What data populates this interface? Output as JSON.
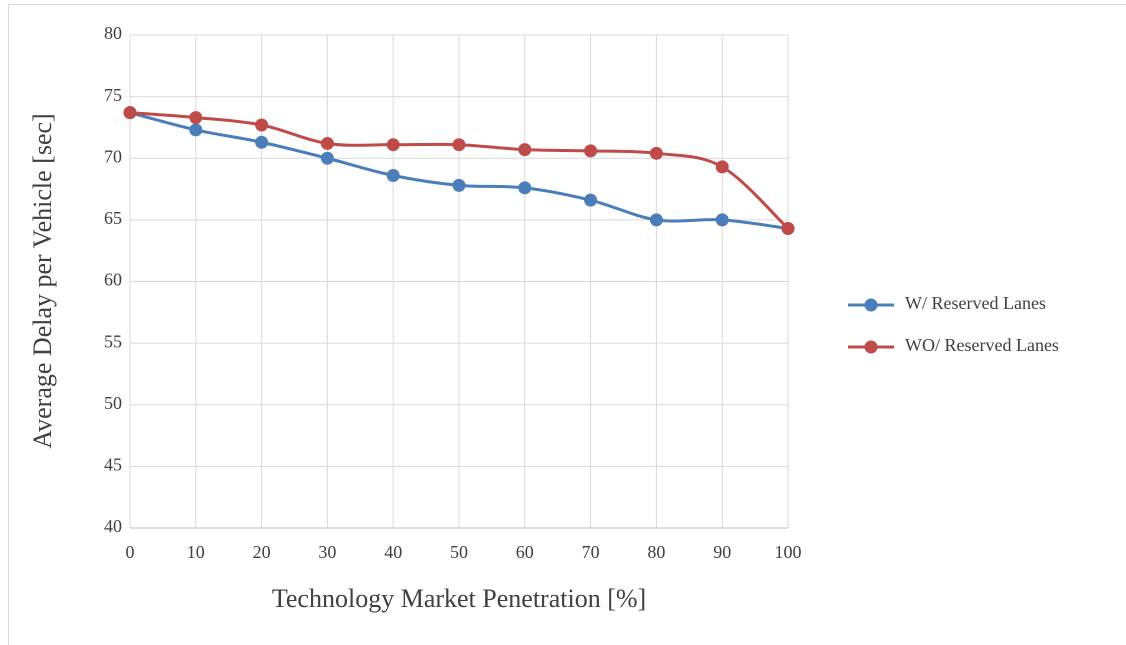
{
  "chart_data": {
    "type": "line",
    "x": [
      0,
      10,
      20,
      30,
      40,
      50,
      60,
      70,
      80,
      90,
      100
    ],
    "series": [
      {
        "name": "W/ Reserved Lanes",
        "color": "#4a7ebb",
        "values": [
          73.7,
          72.3,
          71.3,
          70.0,
          68.6,
          67.8,
          67.6,
          66.6,
          65.0,
          65.0,
          64.3
        ]
      },
      {
        "name": "WO/ Reserved Lanes",
        "color": "#be4b48",
        "values": [
          73.7,
          73.3,
          72.7,
          71.2,
          71.1,
          71.1,
          70.7,
          70.6,
          70.4,
          69.3,
          64.3
        ]
      }
    ],
    "xlabel": "Technology Market Penetration [%]",
    "ylabel": "Average Delay per Vehicle [sec]",
    "xlim": [
      0,
      100
    ],
    "xticks": [
      0,
      10,
      20,
      30,
      40,
      50,
      60,
      70,
      80,
      90,
      100
    ],
    "ylim": [
      40,
      80
    ],
    "yticks": [
      40,
      45,
      50,
      55,
      60,
      65,
      70,
      75,
      80
    ],
    "grid": true,
    "smooth": true,
    "legend": "right"
  }
}
